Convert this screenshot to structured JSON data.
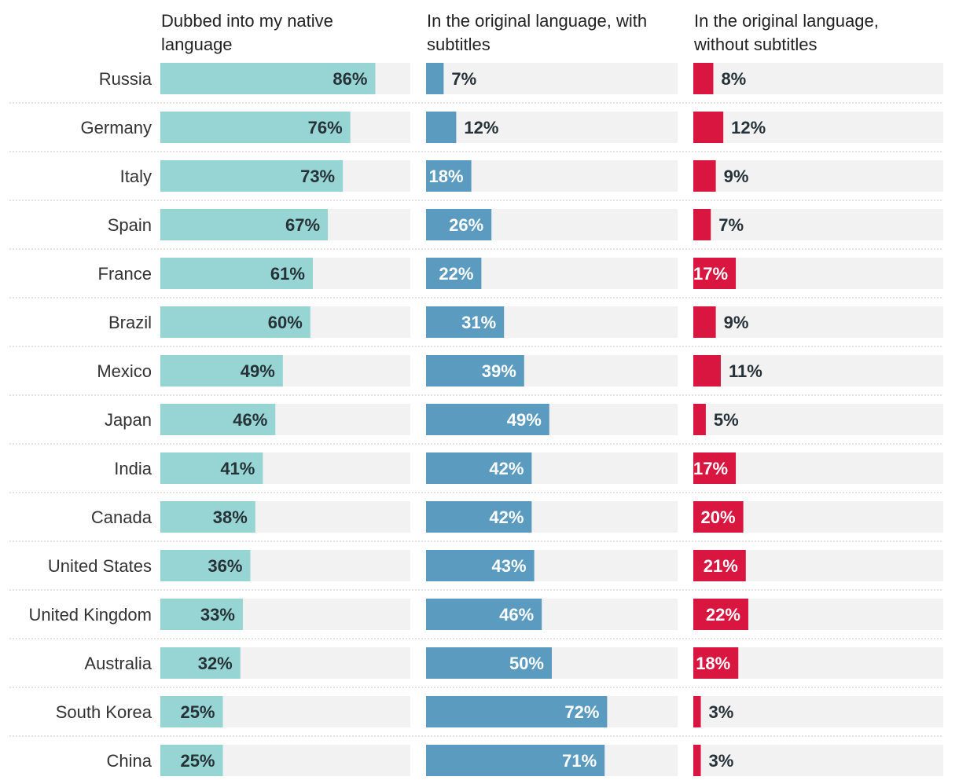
{
  "chart_data": {
    "type": "bar",
    "orientation": "horizontal",
    "layout": "small-multiples",
    "title": "",
    "categories": [
      "Russia",
      "Germany",
      "Italy",
      "Spain",
      "France",
      "Brazil",
      "Mexico",
      "Japan",
      "India",
      "Canada",
      "United States",
      "United Kingdom",
      "Australia",
      "South Korea",
      "China"
    ],
    "series": [
      {
        "name": "Dubbed into my native language",
        "title_lines": [
          "Dubbed into my native",
          "language"
        ],
        "color": "#96d5d3",
        "values": [
          86,
          76,
          73,
          67,
          61,
          60,
          49,
          46,
          41,
          38,
          36,
          33,
          32,
          25,
          25
        ],
        "labels": [
          "86%",
          "76%",
          "73%",
          "67%",
          "61%",
          "60%",
          "49%",
          "46%",
          "41%",
          "38%",
          "36%",
          "33%",
          "32%",
          "25%",
          "25%"
        ]
      },
      {
        "name": "In the original language, with subtitles",
        "title_lines": [
          "In the original language, with",
          "subtitles"
        ],
        "color": "#5b9bc0",
        "values": [
          7,
          12,
          18,
          26,
          22,
          31,
          39,
          49,
          42,
          42,
          43,
          46,
          50,
          72,
          71
        ],
        "labels": [
          "7%",
          "12%",
          "18%",
          "26%",
          "22%",
          "31%",
          "39%",
          "49%",
          "42%",
          "42%",
          "43%",
          "46%",
          "50%",
          "72%",
          "71%"
        ]
      },
      {
        "name": "In the original language, without subtitles",
        "title_lines": [
          "In the original language,",
          "without subtitles"
        ],
        "color": "#d81640",
        "values": [
          8,
          12,
          9,
          7,
          17,
          9,
          11,
          5,
          17,
          20,
          21,
          22,
          18,
          3,
          3
        ],
        "labels": [
          "8%",
          "12%",
          "9%",
          "7%",
          "17%",
          "9%",
          "11%",
          "5%",
          "17%",
          "20%",
          "21%",
          "22%",
          "18%",
          "3%",
          "3%"
        ]
      }
    ],
    "xlim": [
      0,
      100
    ],
    "unit": "%",
    "grid": false,
    "legend": "none"
  },
  "colors": {
    "track": "#f2f2f2",
    "separator": "#c8c8c8",
    "label_dark": "#263238",
    "label_light": "#ffffff"
  }
}
